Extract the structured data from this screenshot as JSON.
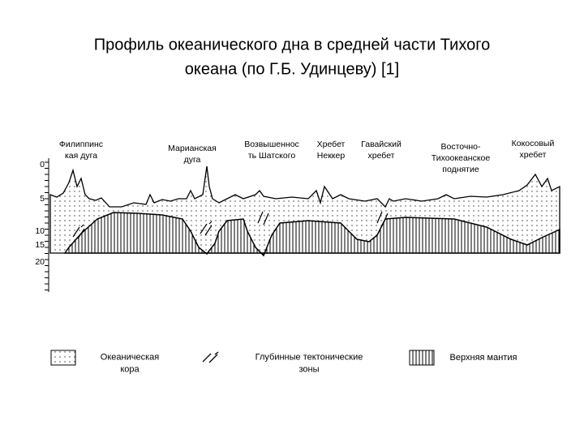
{
  "title": [
    "Профиль океанического дна в средней части Тихого",
    "океана (по Г.Б. Удинцеву) [1]"
  ],
  "regions": [
    {
      "lines": [
        "Филиппинс",
        "кая дуга"
      ]
    },
    {
      "lines": [
        "Марианская",
        "дуга"
      ]
    },
    {
      "lines": [
        "Возвышенноc",
        "ть Шатского"
      ]
    },
    {
      "lines": [
        "Хребет",
        "Неккер"
      ]
    },
    {
      "lines": [
        "Гавайский",
        "хребет"
      ]
    },
    {
      "lines": [
        "Восточно-",
        "Тихоокеанское",
        "поднятие"
      ]
    },
    {
      "lines": [
        "Кокосовый",
        "хребет"
      ]
    }
  ],
  "depth_axis": [
    "0",
    "5",
    "10",
    "15",
    "20"
  ],
  "legend": [
    {
      "lines": [
        "Океаническая",
        "кора"
      ]
    },
    {
      "lines": [
        "Глубинные тектонические",
        "зоны"
      ]
    },
    {
      "lines": [
        "Верхняя мантия"
      ]
    }
  ]
}
